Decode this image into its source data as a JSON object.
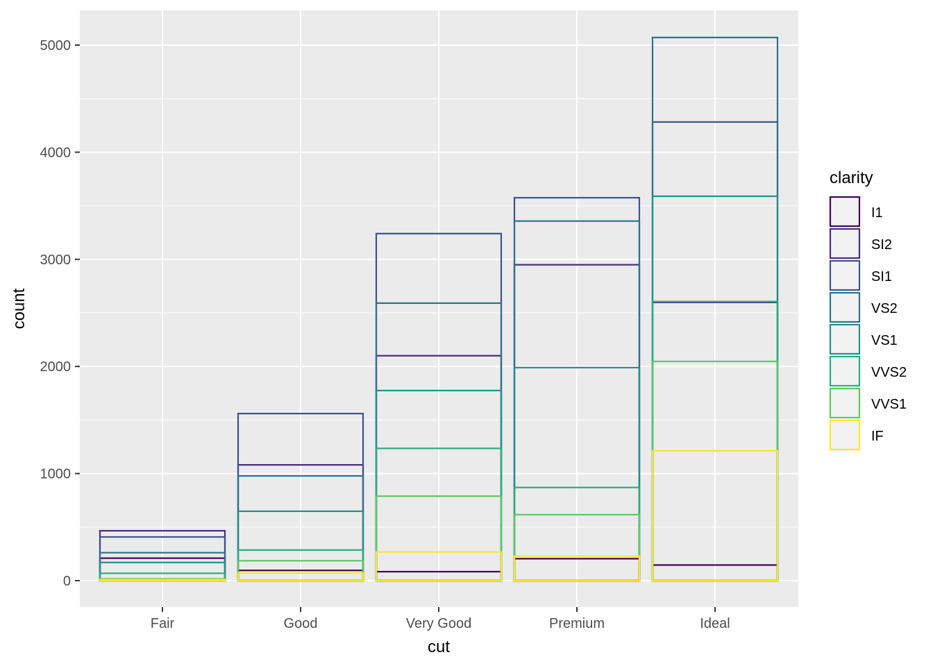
{
  "chart_data": {
    "type": "bar",
    "position": "identity",
    "title": "",
    "xlabel": "cut",
    "ylabel": "count",
    "categories": [
      "Fair",
      "Good",
      "Very Good",
      "Premium",
      "Ideal"
    ],
    "yticks": [
      0,
      1000,
      2000,
      3000,
      4000,
      5000
    ],
    "ytick_labels": [
      "0",
      "1000",
      "2000",
      "3000",
      "4000",
      "5000"
    ],
    "ylim": [
      -250,
      5320
    ],
    "grid": true,
    "legend": {
      "title": "clarity",
      "placement": "right"
    },
    "series": [
      {
        "name": "I1",
        "color": "#440154",
        "values": [
          210,
          96,
          84,
          205,
          146
        ]
      },
      {
        "name": "SI2",
        "color": "#472D7B",
        "values": [
          466,
          1081,
          2100,
          2949,
          2598
        ]
      },
      {
        "name": "SI1",
        "color": "#3B528B",
        "values": [
          408,
          1560,
          3240,
          3575,
          4282
        ]
      },
      {
        "name": "VS2",
        "color": "#2C728E",
        "values": [
          261,
          978,
          2591,
          3357,
          5071
        ]
      },
      {
        "name": "VS1",
        "color": "#21908C",
        "values": [
          170,
          648,
          1775,
          1989,
          3589
        ]
      },
      {
        "name": "VVS2",
        "color": "#27AD81",
        "values": [
          69,
          286,
          1235,
          870,
          2606
        ]
      },
      {
        "name": "VVS1",
        "color": "#5DC863",
        "values": [
          17,
          186,
          789,
          616,
          2047
        ]
      },
      {
        "name": "IF",
        "color": "#FDE725",
        "values": [
          9,
          71,
          268,
          230,
          1212
        ]
      }
    ]
  }
}
